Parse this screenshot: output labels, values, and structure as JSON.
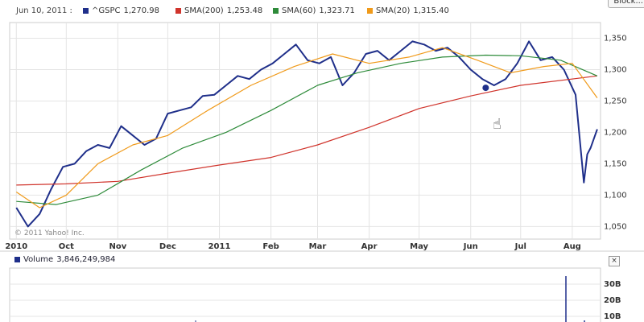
{
  "legend": {
    "date": "Jun 10, 2011 :",
    "items": [
      {
        "label": "^GSPC",
        "value": "1,270.98",
        "color": "#1f2f8a"
      },
      {
        "label": "SMA(200)",
        "value": "1,253.48",
        "color": "#d0342c"
      },
      {
        "label": "SMA(60)",
        "value": "1,323.71",
        "color": "#2e8b3a"
      },
      {
        "label": "SMA(20)",
        "value": "1,315.40",
        "color": "#f09a1a"
      }
    ]
  },
  "block_button": "Block...",
  "copyright": "© 2011 Yahoo! Inc.",
  "volume": {
    "label": "Volume",
    "value": "3,846,249,984",
    "color": "#1f2f8a",
    "y_ticks": [
      "30B",
      "20B",
      "10B"
    ]
  },
  "close_button": "×",
  "chart_data": {
    "type": "line",
    "x_tick_labels": [
      "2010",
      "Oct",
      "Nov",
      "Dec",
      "2011",
      "Feb",
      "Mar",
      "Apr",
      "May",
      "Jun",
      "Jul",
      "Aug"
    ],
    "y_tick_labels": [
      "1,350",
      "1,300",
      "1,250",
      "1,200",
      "1,150",
      "1,100",
      "1,050"
    ],
    "ylim": [
      1030,
      1375
    ],
    "grid": true,
    "series": [
      {
        "name": "^GSPC",
        "color": "#1f2f8a",
        "x": [
          "2010-09-01",
          "2010-09-08",
          "2010-09-15",
          "2010-09-22",
          "2010-09-29",
          "2010-10-06",
          "2010-10-13",
          "2010-10-20",
          "2010-10-27",
          "2010-11-03",
          "2010-11-10",
          "2010-11-17",
          "2010-11-24",
          "2010-12-01",
          "2010-12-08",
          "2010-12-15",
          "2010-12-22",
          "2010-12-29",
          "2011-01-05",
          "2011-01-12",
          "2011-01-19",
          "2011-01-26",
          "2011-02-02",
          "2011-02-09",
          "2011-02-16",
          "2011-02-23",
          "2011-03-02",
          "2011-03-09",
          "2011-03-16",
          "2011-03-23",
          "2011-03-30",
          "2011-04-06",
          "2011-04-13",
          "2011-04-20",
          "2011-04-27",
          "2011-05-04",
          "2011-05-11",
          "2011-05-18",
          "2011-05-25",
          "2011-06-01",
          "2011-06-08",
          "2011-06-15",
          "2011-06-22",
          "2011-06-29",
          "2011-07-06",
          "2011-07-13",
          "2011-07-20",
          "2011-07-27",
          "2011-08-03",
          "2011-08-08",
          "2011-08-10",
          "2011-08-12",
          "2011-08-16"
        ],
        "values": [
          1080,
          1050,
          1070,
          1110,
          1145,
          1150,
          1170,
          1180,
          1175,
          1210,
          1195,
          1180,
          1190,
          1230,
          1235,
          1240,
          1258,
          1260,
          1275,
          1290,
          1285,
          1300,
          1310,
          1325,
          1340,
          1315,
          1310,
          1320,
          1275,
          1295,
          1325,
          1330,
          1315,
          1330,
          1345,
          1340,
          1330,
          1335,
          1320,
          1300,
          1285,
          1275,
          1285,
          1310,
          1345,
          1315,
          1320,
          1300,
          1260,
          1120,
          1165,
          1175,
          1205
        ]
      },
      {
        "name": "SMA(200)",
        "color": "#d0342c",
        "x": [
          "2010-09-01",
          "2010-10-01",
          "2010-11-01",
          "2010-12-01",
          "2011-01-01",
          "2011-02-01",
          "2011-03-01",
          "2011-04-01",
          "2011-05-01",
          "2011-06-01",
          "2011-07-01",
          "2011-08-16"
        ],
        "values": [
          1116,
          1118,
          1122,
          1135,
          1148,
          1160,
          1180,
          1208,
          1238,
          1258,
          1275,
          1290
        ]
      },
      {
        "name": "SMA(60)",
        "color": "#2e8b3a",
        "x": [
          "2010-09-01",
          "2010-09-25",
          "2010-10-20",
          "2010-11-15",
          "2010-12-10",
          "2011-01-05",
          "2011-02-01",
          "2011-03-01",
          "2011-03-25",
          "2011-04-20",
          "2011-05-15",
          "2011-06-10",
          "2011-07-01",
          "2011-07-25",
          "2011-08-16"
        ],
        "values": [
          1090,
          1085,
          1100,
          1140,
          1175,
          1200,
          1235,
          1275,
          1295,
          1310,
          1320,
          1323,
          1322,
          1315,
          1290
        ]
      },
      {
        "name": "SMA(20)",
        "color": "#f09a1a",
        "x": [
          "2010-09-01",
          "2010-09-15",
          "2010-10-01",
          "2010-10-20",
          "2010-11-10",
          "2010-12-01",
          "2010-12-25",
          "2011-01-20",
          "2011-02-15",
          "2011-03-10",
          "2011-04-01",
          "2011-04-25",
          "2011-05-15",
          "2011-06-05",
          "2011-06-25",
          "2011-07-15",
          "2011-08-01",
          "2011-08-16"
        ],
        "values": [
          1105,
          1080,
          1100,
          1150,
          1180,
          1195,
          1235,
          1275,
          1305,
          1325,
          1310,
          1320,
          1335,
          1315,
          1295,
          1305,
          1310,
          1255
        ]
      }
    ]
  }
}
